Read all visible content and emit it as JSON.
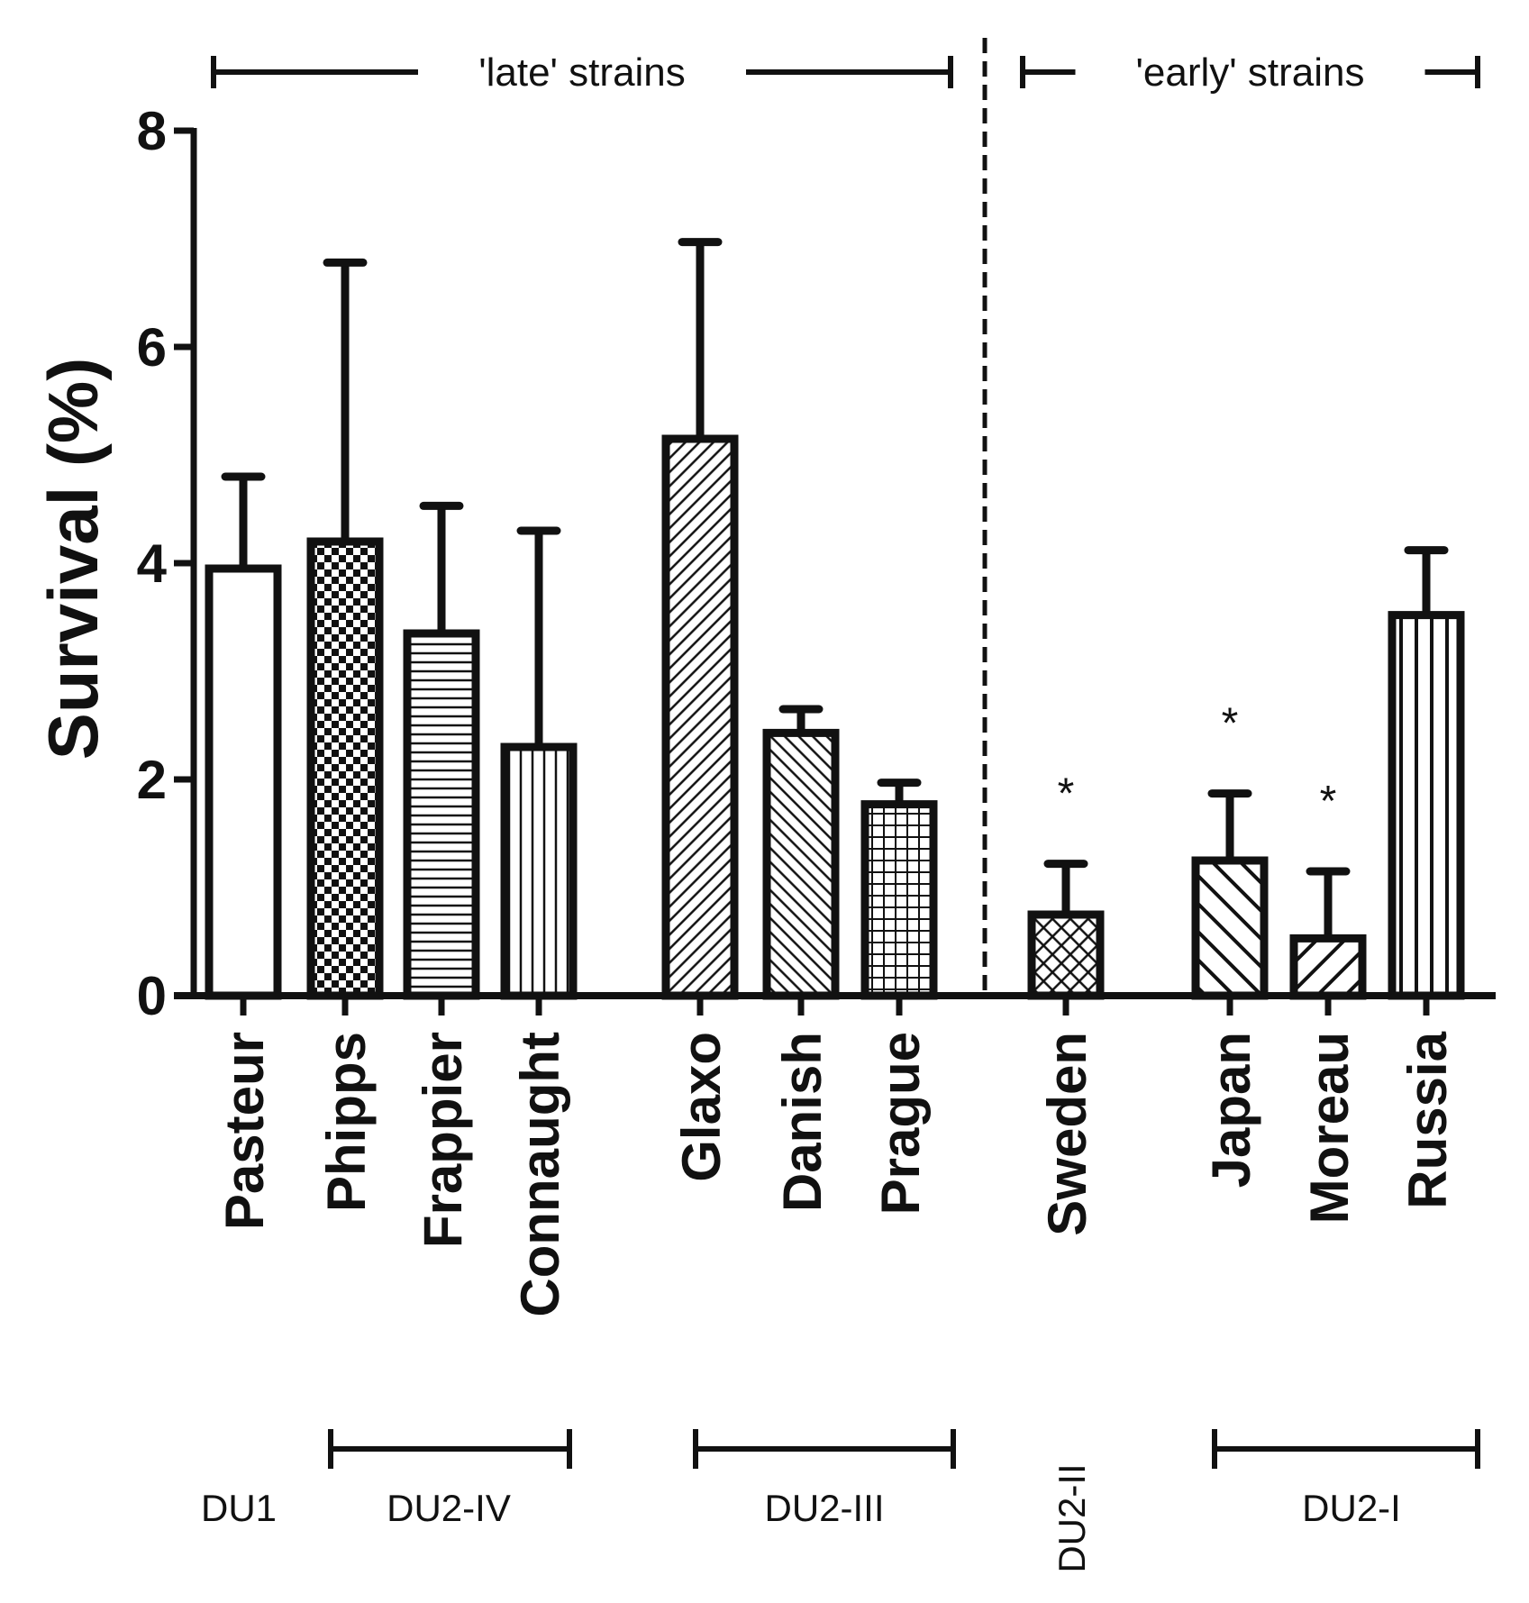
{
  "chart_data": {
    "type": "bar",
    "title": "",
    "xlabel": "",
    "ylabel": "Survival (%)",
    "ylim": [
      0,
      8
    ],
    "yticks": [
      "0",
      "2",
      "4",
      "6",
      "8"
    ],
    "categories": [
      "Pasteur",
      "Phipps",
      "Frappier",
      "Connaught",
      "Glaxo",
      "Danish",
      "Prague",
      "Sweden",
      "Japan",
      "Moreau",
      "Russia"
    ],
    "values": [
      3.95,
      4.2,
      3.35,
      2.3,
      5.15,
      2.43,
      1.77,
      0.75,
      1.25,
      0.53,
      3.52
    ],
    "errors": [
      0.85,
      2.58,
      1.18,
      2.0,
      1.82,
      0.22,
      0.2,
      0.47,
      0.62,
      0.62,
      0.6
    ],
    "patterns": [
      "none",
      "checker",
      "horizontal",
      "vertical",
      "diag-fine",
      "diag-back-fine",
      "grid",
      "crosshatch",
      "diag-back-wide",
      "diag-wide",
      "vertical-wide"
    ],
    "significance": [
      "",
      "",
      "",
      "",
      "",
      "",
      "",
      "*",
      "*",
      "*",
      ""
    ],
    "phase_brackets": [
      {
        "label": "'late' strains",
        "span": [
          "Pasteur",
          "Prague"
        ]
      },
      {
        "label": "'early' strains",
        "span": [
          "Sweden",
          "Russia"
        ]
      }
    ],
    "groups": [
      {
        "label": "DU1",
        "span": [
          "Pasteur",
          "Pasteur"
        ],
        "bracket": false,
        "rotated": false
      },
      {
        "label": "DU2-IV",
        "span": [
          "Phipps",
          "Connaught"
        ],
        "bracket": true,
        "rotated": false
      },
      {
        "label": "DU2-III",
        "span": [
          "Glaxo",
          "Prague"
        ],
        "bracket": true,
        "rotated": false
      },
      {
        "label": "DU2-II",
        "span": [
          "Sweden",
          "Sweden"
        ],
        "bracket": false,
        "rotated": true
      },
      {
        "label": "DU2-I",
        "span": [
          "Japan",
          "Russia"
        ],
        "bracket": true,
        "rotated": false
      }
    ],
    "divider": "dashed line between Prague and Sweden",
    "grid": false,
    "legend": "none"
  }
}
